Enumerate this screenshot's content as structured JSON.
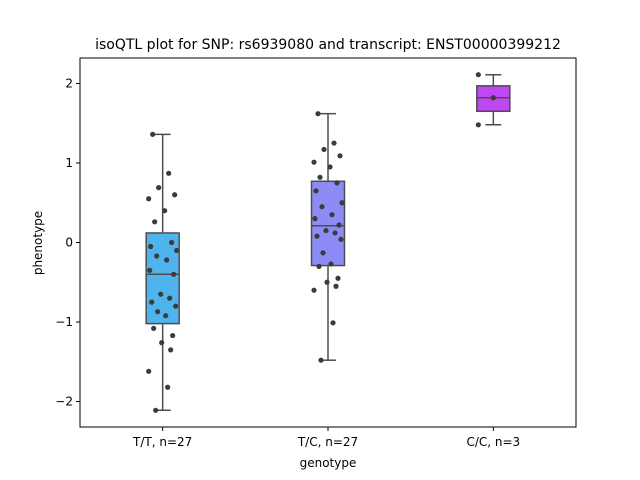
{
  "chart_data": {
    "type": "box",
    "title": "isoQTL plot for SNP: rs6939080 and transcript: ENST00000399212",
    "xlabel": "genotype",
    "ylabel": "phenotype",
    "ylim": [
      -2.32,
      2.32
    ],
    "yticks": [
      -2,
      -1,
      0,
      1,
      2
    ],
    "yticklabels": [
      "−2",
      "−1",
      "0",
      "1",
      "2"
    ],
    "grid": false,
    "legend": "none",
    "categories": [
      "T/T, n=27",
      "T/C, n=27",
      "C/C, n=3"
    ],
    "boxes": [
      {
        "q1": -1.02,
        "median": -0.4,
        "q3": 0.12,
        "whisker_low": -2.11,
        "whisker_high": 1.36,
        "color": "#4fb3ee"
      },
      {
        "q1": -0.29,
        "median": 0.21,
        "q3": 0.77,
        "whisker_low": -1.48,
        "whisker_high": 1.62,
        "color": "#8d8cf6"
      },
      {
        "q1": 1.65,
        "median": 1.82,
        "q3": 1.97,
        "whisker_low": 1.48,
        "whisker_high": 2.11,
        "color": "#bf48f2"
      }
    ],
    "points": [
      [
        1.36,
        0.87,
        0.69,
        0.6,
        0.55,
        0.4,
        0.26,
        0.0,
        -0.05,
        -0.1,
        -0.17,
        -0.22,
        -0.35,
        -0.4,
        -0.65,
        -0.7,
        -0.75,
        -0.8,
        -0.87,
        -0.92,
        -1.08,
        -1.17,
        -1.26,
        -1.35,
        -1.62,
        -1.82,
        -2.11
      ],
      [
        1.62,
        1.25,
        1.17,
        1.09,
        1.01,
        0.95,
        0.82,
        0.75,
        0.65,
        0.5,
        0.45,
        0.35,
        0.3,
        0.22,
        0.15,
        0.12,
        0.08,
        0.04,
        -0.13,
        -0.27,
        -0.3,
        -0.45,
        -0.5,
        -0.55,
        -0.6,
        -1.01,
        -1.48
      ],
      [
        2.11,
        1.82,
        1.48
      ]
    ],
    "point_color": "#3b3b3b"
  }
}
